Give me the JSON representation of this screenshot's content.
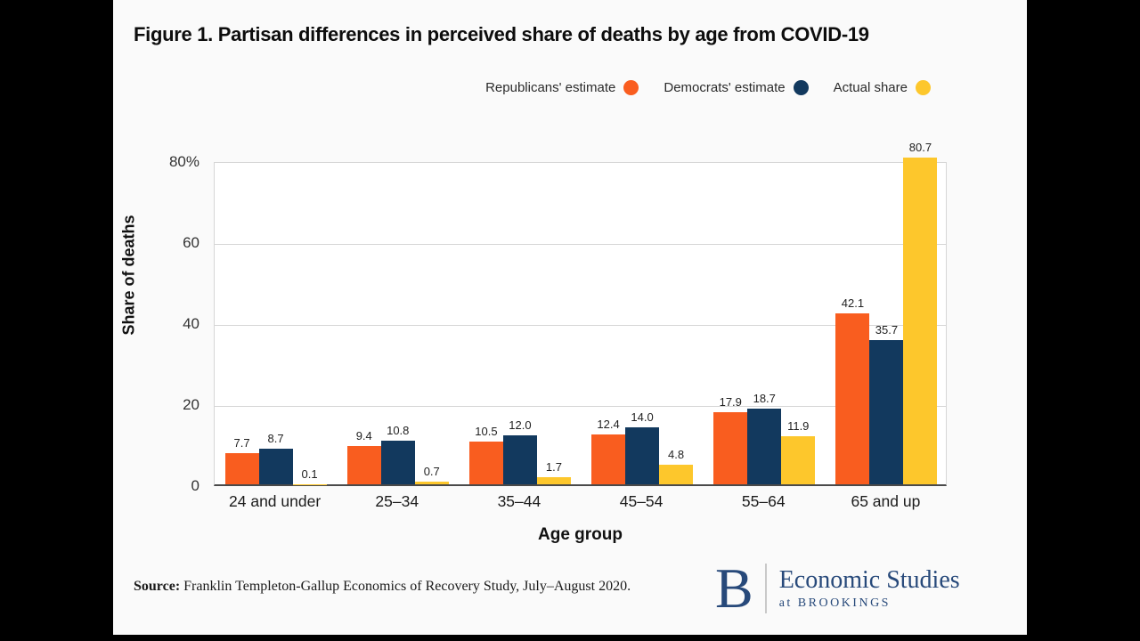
{
  "title": "Figure 1. Partisan differences in perceived share of deaths by age from COVID-19",
  "colors": {
    "republican_orange": "#F95D1F",
    "democrat_navy": "#12395E",
    "actual_yellow": "#FDC72C",
    "logo_navy": "#27497A"
  },
  "legend": [
    {
      "label": "Republicans' estimate",
      "color": "#F95D1F"
    },
    {
      "label": "Democrats' estimate",
      "color": "#12395E"
    },
    {
      "label": "Actual share",
      "color": "#FDC72C"
    }
  ],
  "chart_data": {
    "type": "bar",
    "title": "Figure 1. Partisan differences in perceived share of deaths by age from COVID-19",
    "categories": [
      "24 and under",
      "25–34",
      "35–44",
      "45–54",
      "55–64",
      "65 and up"
    ],
    "series": [
      {
        "name": "Republicans' estimate",
        "color": "#F95D1F",
        "values": [
          7.7,
          9.4,
          10.5,
          12.4,
          17.9,
          42.1
        ]
      },
      {
        "name": "Democrats' estimate",
        "color": "#12395E",
        "values": [
          8.7,
          10.8,
          12.0,
          14.0,
          18.7,
          35.7
        ]
      },
      {
        "name": "Actual share",
        "color": "#FDC72C",
        "values": [
          0.1,
          0.7,
          1.7,
          4.8,
          11.9,
          80.7
        ]
      }
    ],
    "xlabel": "Age group",
    "ylabel": "Share of deaths",
    "ylim": [
      0,
      80
    ],
    "yticks": [
      {
        "value": 0,
        "label": "0"
      },
      {
        "value": 20,
        "label": "20"
      },
      {
        "value": 40,
        "label": "40"
      },
      {
        "value": 60,
        "label": "60"
      },
      {
        "value": 80,
        "label": "80%"
      }
    ],
    "grid": true,
    "legend_position": "top-right",
    "value_label_decimals": 1
  },
  "source": {
    "label": "Source:",
    "text": "Franklin Templeton-Gallup Economics of Recovery Study, July–August 2020."
  },
  "logo": {
    "b_mark": "B",
    "line1": "Economic Studies",
    "line2": "at BROOKINGS"
  }
}
